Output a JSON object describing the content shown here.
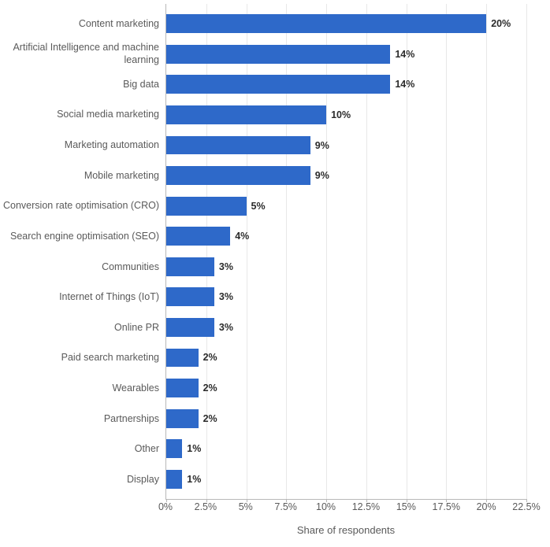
{
  "chart": {
    "type": "bar-horizontal",
    "x_axis_title": "Share of respondents",
    "x_max": 22.5,
    "x_ticks": [
      {
        "value": 0,
        "label": "0%"
      },
      {
        "value": 2.5,
        "label": "2.5%"
      },
      {
        "value": 5,
        "label": "5%"
      },
      {
        "value": 7.5,
        "label": "7.5%"
      },
      {
        "value": 10,
        "label": "10%"
      },
      {
        "value": 12.5,
        "label": "12.5%"
      },
      {
        "value": 15,
        "label": "15%"
      },
      {
        "value": 17.5,
        "label": "17.5%"
      },
      {
        "value": 20,
        "label": "20%"
      },
      {
        "value": 22.5,
        "label": "22.5%"
      }
    ],
    "bar_color": "#2e69c9",
    "grid_color": "#e8e8e8",
    "axis_color": "#b8b8b8",
    "label_color": "#5a5a5a",
    "value_color": "#2b2b2b",
    "background_color": "#ffffff",
    "label_fontsize": 12.5,
    "value_fontsize": 12.5,
    "value_fontweight": "bold",
    "bar_height_ratio": 0.62,
    "categories": [
      {
        "label": "Content marketing",
        "value": 20,
        "value_label": "20%"
      },
      {
        "label": "Artificial Intelligence and machine learning",
        "value": 14,
        "value_label": "14%"
      },
      {
        "label": "Big data",
        "value": 14,
        "value_label": "14%"
      },
      {
        "label": "Social media marketing",
        "value": 10,
        "value_label": "10%"
      },
      {
        "label": "Marketing automation",
        "value": 9,
        "value_label": "9%"
      },
      {
        "label": "Mobile marketing",
        "value": 9,
        "value_label": "9%"
      },
      {
        "label": "Conversion rate optimisation (CRO)",
        "value": 5,
        "value_label": "5%"
      },
      {
        "label": "Search engine optimisation (SEO)",
        "value": 4,
        "value_label": "4%"
      },
      {
        "label": "Communities",
        "value": 3,
        "value_label": "3%"
      },
      {
        "label": "Internet of Things (IoT)",
        "value": 3,
        "value_label": "3%"
      },
      {
        "label": "Online PR",
        "value": 3,
        "value_label": "3%"
      },
      {
        "label": "Paid search marketing",
        "value": 2,
        "value_label": "2%"
      },
      {
        "label": "Wearables",
        "value": 2,
        "value_label": "2%"
      },
      {
        "label": "Partnerships",
        "value": 2,
        "value_label": "2%"
      },
      {
        "label": "Other",
        "value": 1,
        "value_label": "1%"
      },
      {
        "label": "Display",
        "value": 1,
        "value_label": "1%"
      }
    ]
  }
}
